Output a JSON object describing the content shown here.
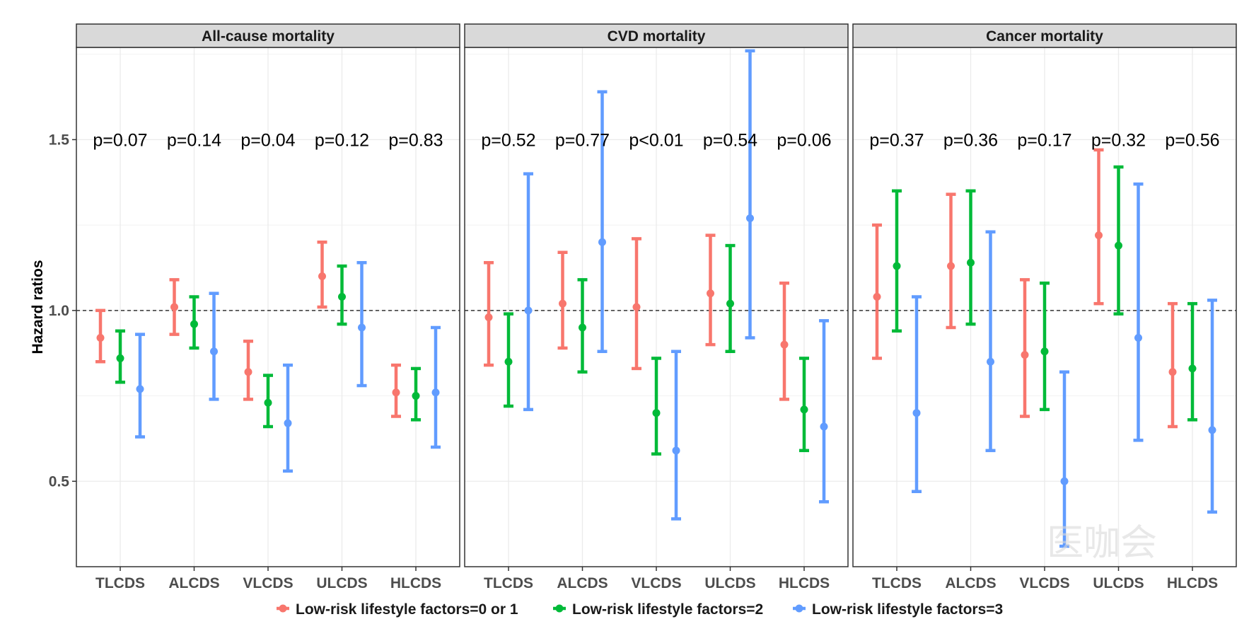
{
  "chart_data": {
    "type": "errorbar",
    "ylabel": "Hazard ratios",
    "ylim": [
      0.25,
      1.77
    ],
    "yticks": [
      0.5,
      1.0,
      1.5
    ],
    "ytick_labels": [
      "0.5",
      "1.0",
      "1.5"
    ],
    "reference_line": 1.0,
    "grid": true,
    "legend_position": "bottom",
    "categories": [
      "TLCDS",
      "ALCDS",
      "VLCDS",
      "ULCDS",
      "HLCDS"
    ],
    "series": [
      {
        "name": "Low-risk lifestyle factors=0 or 1",
        "color": "#F8766D"
      },
      {
        "name": "Low-risk lifestyle factors=2",
        "color": "#00BA38"
      },
      {
        "name": "Low-risk lifestyle factors=3",
        "color": "#619CFF"
      }
    ],
    "panels": [
      {
        "title": "All-cause mortality",
        "p_values": [
          "p=0.07",
          "p=0.14",
          "p=0.04",
          "p=0.12",
          "p=0.83"
        ],
        "data": [
          [
            [
              0.92,
              0.85,
              1.0
            ],
            [
              0.86,
              0.79,
              0.94
            ],
            [
              0.77,
              0.63,
              0.93
            ]
          ],
          [
            [
              1.01,
              0.93,
              1.09
            ],
            [
              0.96,
              0.89,
              1.04
            ],
            [
              0.88,
              0.74,
              1.05
            ]
          ],
          [
            [
              0.82,
              0.74,
              0.91
            ],
            [
              0.73,
              0.66,
              0.81
            ],
            [
              0.67,
              0.53,
              0.84
            ]
          ],
          [
            [
              1.1,
              1.01,
              1.2
            ],
            [
              1.04,
              0.96,
              1.13
            ],
            [
              0.95,
              0.78,
              1.14
            ]
          ],
          [
            [
              0.76,
              0.69,
              0.84
            ],
            [
              0.75,
              0.68,
              0.83
            ],
            [
              0.76,
              0.6,
              0.95
            ]
          ]
        ]
      },
      {
        "title": "CVD mortality",
        "p_values": [
          "p=0.52",
          "p=0.77",
          "p<0.01",
          "p=0.54",
          "p=0.06"
        ],
        "data": [
          [
            [
              0.98,
              0.84,
              1.14
            ],
            [
              0.85,
              0.72,
              0.99
            ],
            [
              1.0,
              0.71,
              1.4
            ]
          ],
          [
            [
              1.02,
              0.89,
              1.17
            ],
            [
              0.95,
              0.82,
              1.09
            ],
            [
              1.2,
              0.88,
              1.64
            ]
          ],
          [
            [
              1.01,
              0.83,
              1.21
            ],
            [
              0.7,
              0.58,
              0.86
            ],
            [
              0.59,
              0.39,
              0.88
            ]
          ],
          [
            [
              1.05,
              0.9,
              1.22
            ],
            [
              1.02,
              0.88,
              1.19
            ],
            [
              1.27,
              0.92,
              1.76
            ]
          ],
          [
            [
              0.9,
              0.74,
              1.08
            ],
            [
              0.71,
              0.59,
              0.86
            ],
            [
              0.66,
              0.44,
              0.97
            ]
          ]
        ]
      },
      {
        "title": "Cancer mortality",
        "p_values": [
          "p=0.37",
          "p=0.36",
          "p=0.17",
          "p=0.32",
          "p=0.56"
        ],
        "data": [
          [
            [
              1.04,
              0.86,
              1.25
            ],
            [
              1.13,
              0.94,
              1.35
            ],
            [
              0.7,
              0.47,
              1.04
            ]
          ],
          [
            [
              1.13,
              0.95,
              1.34
            ],
            [
              1.14,
              0.96,
              1.35
            ],
            [
              0.85,
              0.59,
              1.23
            ]
          ],
          [
            [
              0.87,
              0.69,
              1.09
            ],
            [
              0.88,
              0.71,
              1.08
            ],
            [
              0.5,
              0.31,
              0.82
            ]
          ],
          [
            [
              1.22,
              1.02,
              1.47
            ],
            [
              1.19,
              0.99,
              1.42
            ],
            [
              0.92,
              0.62,
              1.37
            ]
          ],
          [
            [
              0.82,
              0.66,
              1.02
            ],
            [
              0.83,
              0.68,
              1.02
            ],
            [
              0.65,
              0.41,
              1.03
            ]
          ]
        ]
      }
    ]
  },
  "watermark": {
    "text": "医咖会"
  }
}
